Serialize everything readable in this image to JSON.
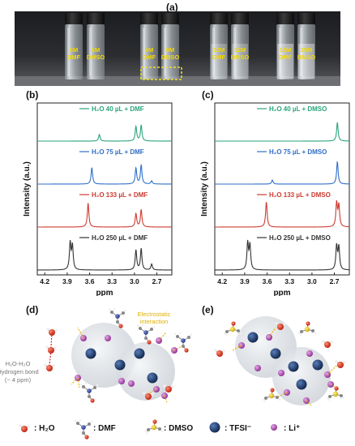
{
  "panels": {
    "a": "(a)",
    "b": "(b)",
    "c": "(c)",
    "d": "(d)",
    "e": "(e)"
  },
  "vials": [
    {
      "line1": "6M",
      "line2": "DMF"
    },
    {
      "line1": "6M",
      "line2": "DMSO"
    },
    {
      "line1": "9M",
      "line2": "DMF"
    },
    {
      "line1": "9M",
      "line2": "DMSO"
    },
    {
      "line1": "12M",
      "line2": "DMF"
    },
    {
      "line1": "12M",
      "line2": "DMSO"
    },
    {
      "line1": "15M",
      "line2": "DMF"
    },
    {
      "line1": "15M",
      "line2": "DMSO"
    }
  ],
  "colors": {
    "green": "#2aa57a",
    "blue": "#2f6fc9",
    "red": "#cc3b32",
    "black": "#333333",
    "highlight": "#f0e020"
  },
  "chart_data": [
    {
      "type": "line",
      "panel": "(b)",
      "xlabel": "ppm",
      "ylabel": "Intensity (a.u.)",
      "x_ticks": [
        "4.2",
        "3.9",
        "3.6",
        "3.3",
        "3.0",
        "2.7"
      ],
      "xlim": [
        4.3,
        2.5
      ],
      "reversed_x": true,
      "series": [
        {
          "name": "H₂O 40 µL + DMF",
          "color": "#2aa57a",
          "peaks": [
            {
              "x": 3.47,
              "h": 0.25
            },
            {
              "x": 2.98,
              "h": 0.55
            },
            {
              "x": 2.91,
              "h": 0.6
            }
          ]
        },
        {
          "name": "H₂O 75 µL + DMF",
          "color": "#2f6fc9",
          "peaks": [
            {
              "x": 3.57,
              "h": 0.62
            },
            {
              "x": 2.98,
              "h": 0.6
            },
            {
              "x": 2.91,
              "h": 0.72
            },
            {
              "x": 2.77,
              "h": 0.12
            }
          ]
        },
        {
          "name": "H₂O 133 µL + DMF",
          "color": "#cc3b32",
          "peaks": [
            {
              "x": 3.62,
              "h": 0.9
            },
            {
              "x": 2.98,
              "h": 0.5
            },
            {
              "x": 2.91,
              "h": 0.65
            }
          ]
        },
        {
          "name": "H₂O 250 µL + DMF",
          "color": "#333333",
          "peaks": [
            {
              "x": 3.86,
              "h": 1.0
            },
            {
              "x": 3.83,
              "h": 0.9
            },
            {
              "x": 2.98,
              "h": 0.75
            },
            {
              "x": 2.91,
              "h": 0.8
            },
            {
              "x": 2.77,
              "h": 0.22
            }
          ]
        }
      ]
    },
    {
      "type": "line",
      "panel": "(c)",
      "xlabel": "ppm",
      "ylabel": "Intensity (a.u.)",
      "x_ticks": [
        "4.2",
        "3.9",
        "3.6",
        "3.3",
        "3.0",
        "2.7"
      ],
      "xlim": [
        4.3,
        2.5
      ],
      "reversed_x": true,
      "series": [
        {
          "name": "H₂O 40 µL + DMSO",
          "color": "#2aa57a",
          "peaks": [
            {
              "x": 2.66,
              "h": 0.7
            }
          ]
        },
        {
          "name": "H₂O 75 µL + DMSO",
          "color": "#2f6fc9",
          "peaks": [
            {
              "x": 3.53,
              "h": 0.15
            },
            {
              "x": 2.66,
              "h": 0.85
            }
          ]
        },
        {
          "name": "H₂O 133 µL + DMSO",
          "color": "#cc3b32",
          "peaks": [
            {
              "x": 3.61,
              "h": 0.95
            },
            {
              "x": 2.67,
              "h": 0.9
            },
            {
              "x": 2.64,
              "h": 0.8
            }
          ]
        },
        {
          "name": "H₂O 250 µL + DMSO",
          "color": "#333333",
          "peaks": [
            {
              "x": 3.86,
              "h": 1.0
            },
            {
              "x": 3.83,
              "h": 0.92
            },
            {
              "x": 2.67,
              "h": 0.9
            },
            {
              "x": 2.64,
              "h": 0.85
            }
          ]
        }
      ]
    }
  ],
  "diagram": {
    "electrostatic_label": "Electrostatic\ninteraction",
    "hbond_line1": "H₂O-H₂O",
    "hbond_line2": "Hydrogen bond",
    "hbond_line3": "(~ 4 ppm)"
  },
  "legend": [
    {
      "label": ": H₂O",
      "icon": "water-icon"
    },
    {
      "label": ": DMF",
      "icon": "dmf-icon"
    },
    {
      "label": ": DMSO",
      "icon": "dmso-icon"
    },
    {
      "label": ": TFSI⁻",
      "icon": "tfsi-icon"
    },
    {
      "label": ": Li⁺",
      "icon": "li-icon"
    }
  ]
}
